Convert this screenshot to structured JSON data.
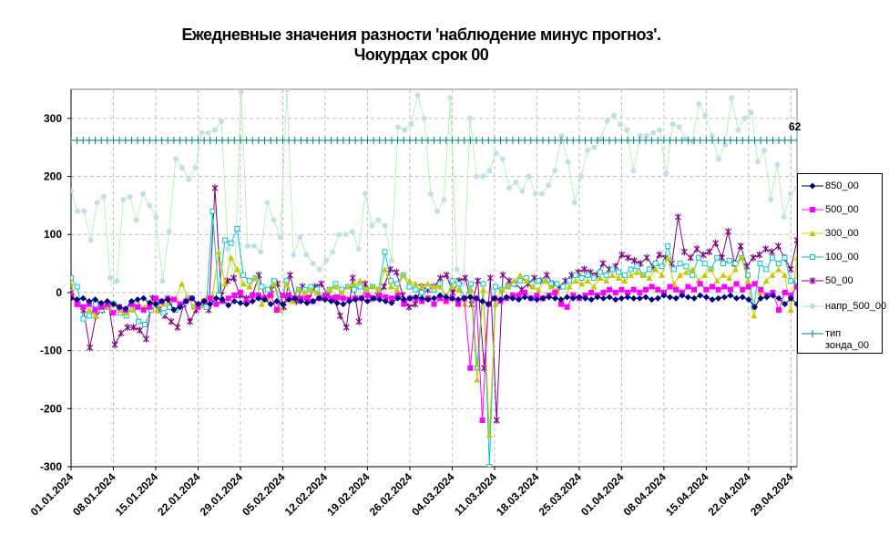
{
  "chart_data": {
    "type": "line",
    "title": "Ежедневные значения разности 'наблюдение минус прогноз'.",
    "subtitle": "Чокурдах    срок 00",
    "ylim": [
      -300,
      350
    ],
    "yticks": [
      "300",
      "200",
      "100",
      "0",
      "-100",
      "-200",
      "-300"
    ],
    "ytick_values": [
      300,
      200,
      100,
      0,
      -100,
      -200,
      -300
    ],
    "xlim": [
      "2024-01-01",
      "2024-04-30"
    ],
    "xticks": [
      "01.01.2024",
      "08.01.2024",
      "15.01.2024",
      "22.01.2024",
      "29.01.2024",
      "05.02.2024",
      "12.02.2024",
      "19.02.2024",
      "26.02.2024",
      "04.03.2024",
      "11.03.2024",
      "18.03.2024",
      "25.03.2024",
      "01.04.2024",
      "08.04.2024",
      "15.04.2024",
      "22.04.2024",
      "29.04.2024"
    ],
    "annotation": "62",
    "grid": true,
    "legend": "right",
    "series": [
      {
        "name": "850_00",
        "color": "#000080",
        "marker": "diamond",
        "values": [
          -10,
          -12,
          -10,
          -15,
          -12,
          -18,
          -15,
          -20,
          -25,
          -28,
          -15,
          -12,
          -10,
          -18,
          -20,
          -15,
          -12,
          -30,
          -25,
          -15,
          -10,
          -20,
          -15,
          -20,
          -10,
          -12,
          -22,
          -15,
          -18,
          -20,
          -15,
          -10,
          -12,
          -20,
          -15,
          -20,
          -12,
          -10,
          -15,
          -18,
          -15,
          -10,
          -12,
          -15,
          -18,
          -20,
          -15,
          -12,
          -10,
          -15,
          -10,
          -12,
          -15,
          -18,
          -10,
          -12,
          -10,
          -8,
          -10,
          -12,
          -10,
          -5,
          -8,
          -10,
          -12,
          -10,
          -8,
          -10,
          -15,
          -20,
          -10,
          -12,
          -8,
          -10,
          -12,
          -8,
          -10,
          -12,
          -10,
          -8,
          -10,
          -12,
          -8,
          -10,
          -8,
          -10,
          -12,
          -8,
          -10,
          -8,
          -12,
          -10,
          -8,
          -10,
          -10,
          -8,
          -12,
          -10,
          -5,
          -8,
          -10,
          -5,
          -8,
          -10,
          -5,
          -8,
          -12,
          -10,
          -8,
          -5,
          -10,
          -8,
          -12,
          -25,
          -10,
          -8,
          -5,
          -10,
          -20,
          -10,
          -20
        ]
      },
      {
        "name": "500_00",
        "color": "#ff00ff",
        "marker": "square",
        "values": [
          -5,
          -20,
          -25,
          -20,
          -30,
          -25,
          -20,
          -35,
          -25,
          -30,
          -20,
          -25,
          -30,
          -25,
          -10,
          -15,
          -10,
          -12,
          -20,
          -15,
          -10,
          -25,
          -15,
          -10,
          -20,
          -15,
          -10,
          -5,
          0,
          -15,
          -5,
          -5,
          -10,
          -5,
          -30,
          -5,
          -5,
          -10,
          -10,
          -10,
          -15,
          -10,
          -5,
          -10,
          -8,
          -10,
          -12,
          -10,
          -10,
          -5,
          -10,
          -5,
          -8,
          -10,
          -5,
          -20,
          -10,
          -10,
          -15,
          -10,
          -20,
          -10,
          -15,
          -10,
          -20,
          -10,
          -130,
          -10,
          -220,
          -20,
          -10,
          -15,
          -10,
          -5,
          -5,
          0,
          -10,
          -5,
          -10,
          -5,
          0,
          -20,
          -25,
          -5,
          -10,
          -5,
          0,
          -5,
          0,
          5,
          0,
          5,
          0,
          5,
          0,
          5,
          10,
          5,
          0,
          10,
          5,
          0,
          10,
          5,
          15,
          5,
          10,
          5,
          10,
          5,
          15,
          5,
          10,
          15,
          5,
          -5,
          0,
          -30,
          0,
          -5,
          10
        ]
      },
      {
        "name": "300_00",
        "color": "#c8c800",
        "marker": "triangle",
        "values": [
          15,
          -20,
          -25,
          -30,
          -40,
          -20,
          -25,
          -20,
          -30,
          -35,
          -30,
          -20,
          -25,
          -15,
          -30,
          -20,
          -15,
          -10,
          15,
          -10,
          -25,
          -20,
          -10,
          -5,
          70,
          15,
          60,
          40,
          15,
          10,
          25,
          -20,
          -10,
          15,
          -30,
          15,
          -15,
          5,
          0,
          5,
          0,
          -10,
          5,
          10,
          0,
          10,
          15,
          20,
          5,
          10,
          5,
          40,
          10,
          5,
          30,
          20,
          15,
          10,
          15,
          10,
          10,
          -5,
          10,
          5,
          -20,
          5,
          -150,
          5,
          -245,
          -20,
          5,
          10,
          20,
          30,
          20,
          10,
          5,
          20,
          10,
          5,
          -20,
          10,
          20,
          15,
          20,
          10,
          25,
          20,
          30,
          25,
          20,
          30,
          35,
          30,
          25,
          40,
          30,
          60,
          15,
          30,
          35,
          40,
          20,
          30,
          40,
          20,
          30,
          25,
          40,
          60,
          20,
          -40,
          0,
          20,
          30,
          40,
          30,
          -30,
          60
        ]
      },
      {
        "name": "100_00",
        "color": "#00c8c8",
        "marker": "square-open",
        "values": [
          25,
          10,
          -45,
          -40,
          -20,
          -30,
          -25,
          -20,
          -35,
          -40,
          -20,
          -50,
          -55,
          -30,
          -20,
          -35,
          -25,
          -30,
          -20,
          -10,
          -25,
          -20,
          -25,
          140,
          -5,
          90,
          85,
          110,
          30,
          20,
          25,
          10,
          5,
          20,
          -20,
          20,
          -10,
          5,
          5,
          10,
          5,
          -10,
          5,
          15,
          5,
          10,
          5,
          10,
          5,
          10,
          5,
          70,
          20,
          15,
          30,
          10,
          5,
          0,
          10,
          5,
          15,
          -10,
          20,
          15,
          -10,
          15,
          -130,
          15,
          -300,
          10,
          5,
          10,
          15,
          20,
          25,
          15,
          20,
          20,
          15,
          15,
          10,
          20,
          30,
          25,
          30,
          25,
          35,
          30,
          40,
          35,
          30,
          40,
          45,
          30,
          40,
          50,
          45,
          80,
          40,
          50,
          45,
          30,
          60,
          50,
          40,
          60,
          50,
          55,
          50,
          60,
          30,
          -25,
          50,
          40,
          60,
          50,
          60,
          20,
          20
        ]
      },
      {
        "name": "50_00",
        "color": "#800080",
        "marker": "star",
        "values": [
          0,
          -20,
          -30,
          -95,
          -40,
          -30,
          -20,
          -90,
          -70,
          -60,
          -60,
          -65,
          -80,
          -10,
          -30,
          -40,
          -50,
          -60,
          -20,
          -50,
          -30,
          -20,
          -30,
          180,
          -5,
          20,
          25,
          -5,
          -10,
          -5,
          30,
          -10,
          5,
          15,
          -25,
          30,
          -15,
          10,
          -10,
          10,
          15,
          -5,
          -10,
          -40,
          -60,
          25,
          -50,
          15,
          -10,
          -5,
          10,
          40,
          35,
          -5,
          -25,
          -20,
          10,
          5,
          10,
          25,
          30,
          0,
          20,
          25,
          -20,
          20,
          -130,
          25,
          -220,
          30,
          20,
          15,
          5,
          15,
          25,
          20,
          30,
          15,
          10,
          20,
          30,
          35,
          40,
          35,
          30,
          50,
          40,
          45,
          65,
          60,
          55,
          50,
          60,
          45,
          65,
          60,
          50,
          130,
          70,
          60,
          75,
          65,
          70,
          85,
          60,
          105,
          50,
          80,
          45,
          60,
          65,
          75,
          70,
          80,
          60,
          40,
          90
        ]
      },
      {
        "name": "напр_500_00",
        "color": "#c0e0e8",
        "marker": "circle",
        "values": [
          175,
          140,
          140,
          90,
          155,
          165,
          25,
          20,
          160,
          165,
          125,
          170,
          150,
          130,
          20,
          105,
          230,
          215,
          195,
          215,
          275,
          275,
          280,
          295,
          75,
          25,
          345,
          80,
          80,
          70,
          155,
          125,
          95,
          350,
          65,
          95,
          65,
          50,
          40,
          55,
          70,
          100,
          100,
          105,
          75,
          170,
          115,
          125,
          115,
          55,
          285,
          280,
          290,
          340,
          300,
          170,
          140,
          160,
          335,
          40,
          15,
          300,
          200,
          200,
          210,
          240,
          230,
          180,
          190,
          175,
          200,
          170,
          170,
          185,
          210,
          270,
          225,
          155,
          200,
          245,
          250,
          265,
          295,
          305,
          290,
          280,
          210,
          270,
          270,
          275,
          280,
          205,
          290,
          285,
          265,
          260,
          325,
          305,
          270,
          230,
          255,
          335,
          280,
          300,
          310,
          225,
          245,
          160,
          220,
          130,
          170,
          180
        ]
      },
      {
        "name": "тип зонда_00",
        "color": "#008080",
        "marker": "plus",
        "constant": 262
      }
    ]
  },
  "legend": {
    "items": [
      {
        "label": "850_00"
      },
      {
        "label": "500_00"
      },
      {
        "label": "300_00"
      },
      {
        "label": "100_00"
      },
      {
        "label": "50_00"
      },
      {
        "label": "напр_500_00"
      },
      {
        "label": "тип зонда_00"
      }
    ]
  }
}
